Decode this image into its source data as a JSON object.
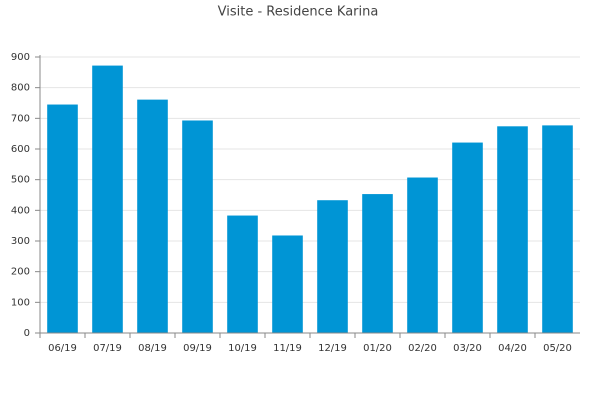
{
  "chart_data": {
    "type": "bar",
    "title": "Visite - Residence Karina",
    "categories": [
      "06/19",
      "07/19",
      "08/19",
      "09/19",
      "10/19",
      "11/19",
      "12/19",
      "01/20",
      "02/20",
      "03/20",
      "04/20",
      "05/20"
    ],
    "values": [
      745,
      872,
      761,
      693,
      383,
      318,
      433,
      453,
      507,
      621,
      674,
      677
    ],
    "color": "#0095d5",
    "ylim": [
      0,
      900
    ],
    "yticks": [
      0,
      100,
      200,
      300,
      400,
      500,
      600,
      700,
      800,
      900
    ],
    "grid": true
  }
}
